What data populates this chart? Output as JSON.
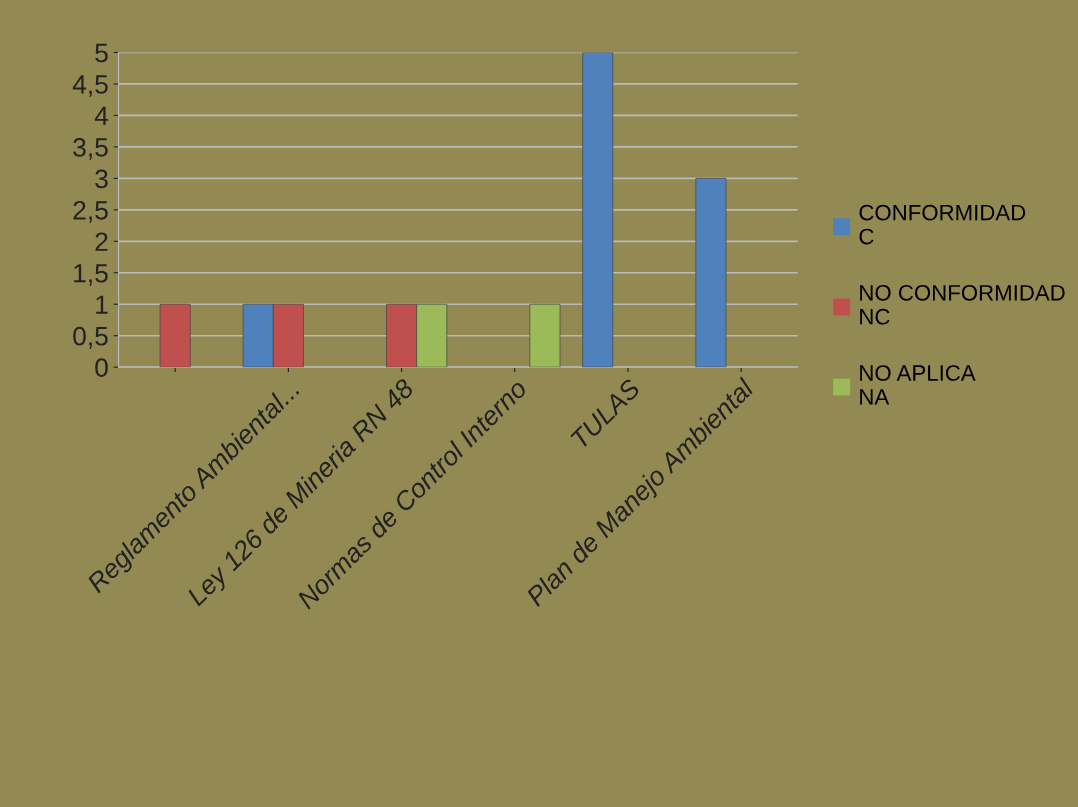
{
  "chart_data": {
    "type": "bar",
    "categories": [
      null,
      "Reglamento Ambiental...",
      "Ley 126 de Mineria RN 48",
      "Normas de Control Interno",
      "TULAS",
      "Plan de Manejo Ambiental"
    ],
    "series": [
      {
        "name": "CONFORMIDAD\nC",
        "color": "#4f81bd",
        "values": [
          null,
          1,
          null,
          null,
          5,
          3
        ]
      },
      {
        "name": "NO CONFORMIDAD\nNC",
        "color": "#c0504d",
        "values": [
          1,
          1,
          1,
          null,
          null,
          null
        ]
      },
      {
        "name": "NO APLICA\nNA",
        "color": "#9bbb59",
        "values": [
          null,
          null,
          1,
          1,
          null,
          null
        ]
      }
    ],
    "ylim": [
      0,
      5
    ],
    "yticks": [
      0,
      {
        "value": 0.5,
        "label": "0,5"
      },
      1,
      {
        "value": 1.5,
        "label": "1,5"
      },
      2,
      {
        "value": 2.5,
        "label": "2,5"
      },
      3,
      {
        "value": 3.5,
        "label": "3,5"
      },
      4,
      {
        "value": 4.5,
        "label": "4,5"
      },
      5
    ],
    "grid": "y",
    "legend": "right"
  }
}
